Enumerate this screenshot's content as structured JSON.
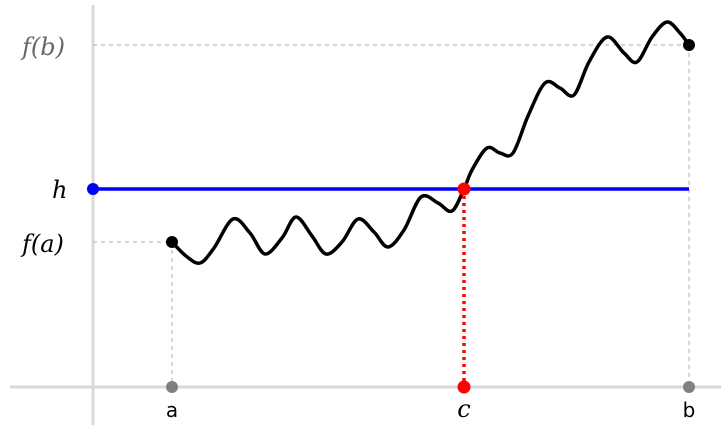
{
  "labels": {
    "fb": "f(b)",
    "h": "h",
    "fa": "f(a)",
    "a": "a",
    "c": "c",
    "b": "b"
  },
  "colors": {
    "axis": "#d9d9d9",
    "guide": "#bdbdbd",
    "curve": "#000000",
    "level_line": "#0000ff",
    "crossing": "#ff0000",
    "axis_point": "#808080",
    "fb_label": "#666666",
    "text": "#000000"
  },
  "levels": {
    "f_a": 0,
    "h": 0.37,
    "f_b": 1
  }
}
